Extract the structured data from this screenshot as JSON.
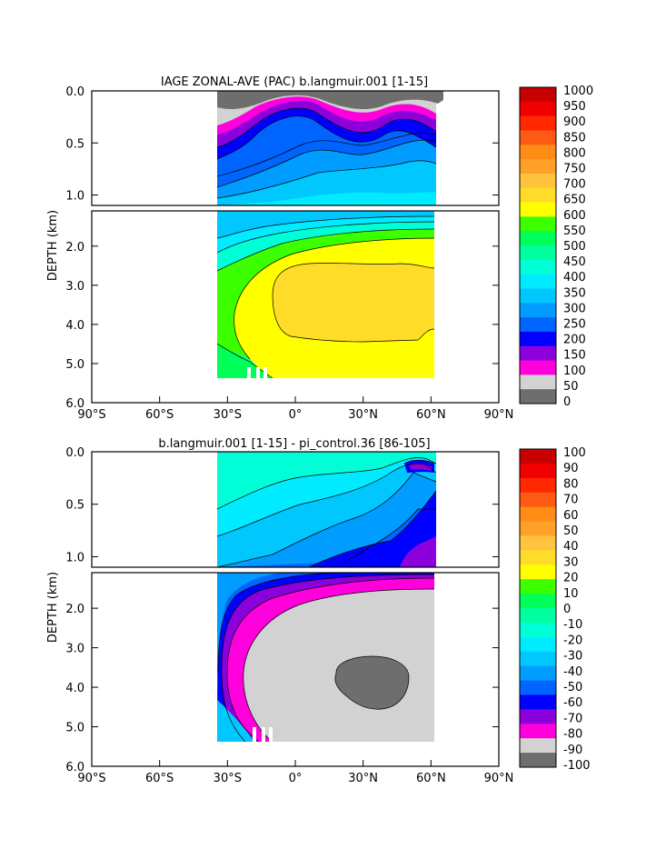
{
  "colors": {
    "age_scale": [
      "#6e6e6e",
      "#d2d2d2",
      "#ff00dd",
      "#8c00dc",
      "#0000ff",
      "#0065ff",
      "#009cff",
      "#00c8ff",
      "#00ebff",
      "#00ffd7",
      "#00ffa0",
      "#00ff58",
      "#3cff00",
      "#ffff00",
      "#ffdc28",
      "#ffc33c",
      "#ffa028",
      "#ff8c14",
      "#ff5a14",
      "#ff2800",
      "#f00000",
      "#c80000"
    ],
    "diff_scale": [
      "#6e6e6e",
      "#d2d2d2",
      "#ff00dd",
      "#8c00dc",
      "#0000ff",
      "#0065ff",
      "#009cff",
      "#00c8ff",
      "#00ebff",
      "#00ffd7",
      "#00ffa0",
      "#00ff58",
      "#3cff00",
      "#ffff00",
      "#ffdc28",
      "#ffc33c",
      "#ffa028",
      "#ff8c14",
      "#ff5a14",
      "#ff2800",
      "#f00000",
      "#c80000"
    ]
  },
  "chart_data": [
    {
      "type": "heatmap",
      "title": "IAGE ZONAL-AVE (PAC) b.langmuir.001 [1-15]",
      "ylabel": "DEPTH (km)",
      "xlabel": "",
      "x_ticks": [
        "90°S",
        "60°S",
        "30°S",
        "0°",
        "30°N",
        "60°N",
        "90°N"
      ],
      "y_ticks_upper": [
        "0.0",
        "0.5",
        "1.0"
      ],
      "y_ticks_lower": [
        "2.0",
        "3.0",
        "4.0",
        "5.0",
        "6.0"
      ],
      "xlim": [
        -90,
        90
      ],
      "ylim_upper": [
        0.0,
        1.1
      ],
      "ylim_lower": [
        1.1,
        6.0
      ],
      "colorbar_labels": [
        "1000",
        "950",
        "900",
        "850",
        "800",
        "750",
        "700",
        "650",
        "600",
        "550",
        "500",
        "450",
        "400",
        "350",
        "300",
        "250",
        "200",
        "150",
        "100",
        "50",
        "0"
      ],
      "colorbar_range": [
        0,
        1000
      ],
      "legend_position": "right"
    },
    {
      "type": "heatmap",
      "title": "b.langmuir.001 [1-15] - pi_control.36 [86-105]",
      "ylabel": "DEPTH (km)",
      "xlabel": "",
      "x_ticks": [
        "90°S",
        "60°S",
        "30°S",
        "0°",
        "30°N",
        "60°N",
        "90°N"
      ],
      "y_ticks_upper": [
        "0.0",
        "0.5",
        "1.0"
      ],
      "y_ticks_lower": [
        "2.0",
        "3.0",
        "4.0",
        "5.0",
        "6.0"
      ],
      "xlim": [
        -90,
        90
      ],
      "ylim_upper": [
        0.0,
        1.1
      ],
      "ylim_lower": [
        1.1,
        6.0
      ],
      "colorbar_labels": [
        "100",
        "90",
        "80",
        "70",
        "60",
        "50",
        "40",
        "30",
        "20",
        "10",
        "0",
        "-10",
        "-20",
        "-30",
        "-40",
        "-50",
        "-60",
        "-70",
        "-80",
        "-90",
        "-100"
      ],
      "colorbar_range": [
        -100,
        100
      ],
      "legend_position": "right"
    }
  ]
}
